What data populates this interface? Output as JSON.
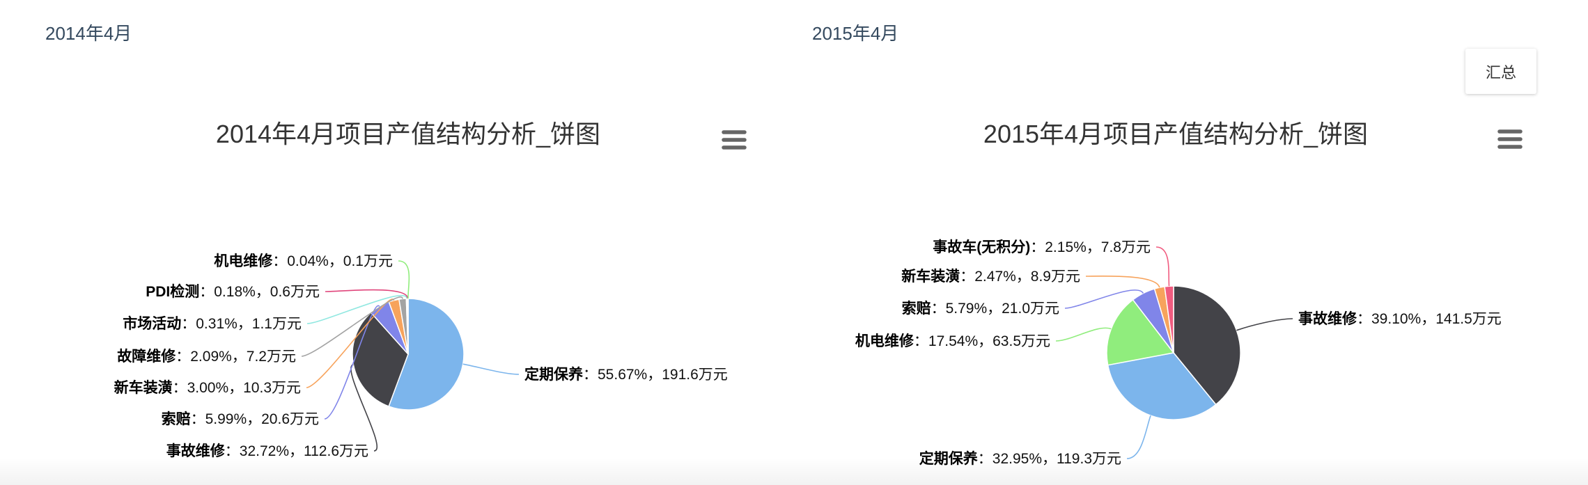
{
  "panels": [
    {
      "heading": "2014年4月"
    },
    {
      "heading": "2015年4月"
    }
  ],
  "summary_button": {
    "label": "汇总"
  },
  "chart_menu_icon": "hamburger-menu-icon",
  "chart_data": [
    {
      "type": "pie",
      "title": "2014年4月项目产值结构分析_饼图",
      "separators": [
        "：",
        "，"
      ],
      "slices": [
        {
          "name": "定期保养",
          "y": 55.67,
          "percent": "55.67%",
          "amount": "191.6万元",
          "color": "#7cb5ec"
        },
        {
          "name": "事故维修",
          "y": 32.72,
          "percent": "32.72%",
          "amount": "112.6万元",
          "color": "#434348"
        },
        {
          "name": "索赔",
          "y": 5.99,
          "percent": "5.99%",
          "amount": "20.6万元",
          "color": "#8085e9"
        },
        {
          "name": "新车装潢",
          "y": 3.0,
          "percent": "3.00%",
          "amount": "10.3万元",
          "color": "#f7a35c"
        },
        {
          "name": "故障维修",
          "y": 2.09,
          "percent": "2.09%",
          "amount": "7.2万元",
          "color": "#a3a3a3"
        },
        {
          "name": "市场活动",
          "y": 0.31,
          "percent": "0.31%",
          "amount": "1.1万元",
          "color": "#91e8e1"
        },
        {
          "name": "PDI检测",
          "y": 0.18,
          "percent": "0.18%",
          "amount": "0.6万元",
          "color": "#e0457b"
        },
        {
          "name": "机电维修",
          "y": 0.04,
          "percent": "0.04%",
          "amount": "0.1万元",
          "color": "#90ed7d"
        }
      ]
    },
    {
      "type": "pie",
      "title": "2015年4月项目产值结构分析_饼图",
      "separators": [
        "：",
        "，"
      ],
      "slices": [
        {
          "name": "事故维修",
          "y": 39.1,
          "percent": "39.10%",
          "amount": "141.5万元",
          "color": "#434348"
        },
        {
          "name": "定期保养",
          "y": 32.95,
          "percent": "32.95%",
          "amount": "119.3万元",
          "color": "#7cb5ec"
        },
        {
          "name": "机电维修",
          "y": 17.54,
          "percent": "17.54%",
          "amount": "63.5万元",
          "color": "#90ed7d"
        },
        {
          "name": "索赔",
          "y": 5.79,
          "percent": "5.79%",
          "amount": "21.0万元",
          "color": "#8085e9"
        },
        {
          "name": "新车装潢",
          "y": 2.47,
          "percent": "2.47%",
          "amount": "8.9万元",
          "color": "#f7a35c"
        },
        {
          "name": "事故车(无积分)",
          "y": 2.15,
          "percent": "2.15%",
          "amount": "7.8万元",
          "color": "#f15c80"
        }
      ]
    }
  ]
}
